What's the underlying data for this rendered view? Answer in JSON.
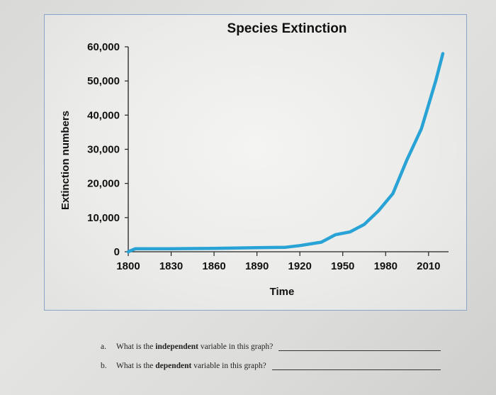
{
  "chart_data": {
    "type": "line",
    "title": "Species Extinction",
    "xlabel": "Time",
    "ylabel": "Extinction numbers",
    "x_ticks": [
      1800,
      1830,
      1860,
      1890,
      1920,
      1950,
      1980,
      2010
    ],
    "y_ticks": [
      "0",
      "10,000",
      "20,000",
      "30,000",
      "40,000",
      "50,000",
      "60,000"
    ],
    "xlim": [
      1800,
      2020
    ],
    "ylim": [
      0,
      60000
    ],
    "grid": false,
    "series": [
      {
        "color": "#29a3d6",
        "points": [
          [
            1800,
            0
          ],
          [
            1805,
            900
          ],
          [
            1830,
            900
          ],
          [
            1860,
            1000
          ],
          [
            1890,
            1200
          ],
          [
            1910,
            1300
          ],
          [
            1920,
            1800
          ],
          [
            1935,
            2800
          ],
          [
            1945,
            5000
          ],
          [
            1955,
            5800
          ],
          [
            1965,
            8000
          ],
          [
            1975,
            12000
          ],
          [
            1985,
            17000
          ],
          [
            1995,
            27000
          ],
          [
            2005,
            36000
          ],
          [
            2015,
            50000
          ],
          [
            2020,
            58000
          ]
        ]
      }
    ]
  },
  "questions": [
    {
      "letter": "a.",
      "pre": "What is the ",
      "bold": "independent",
      "post": " variable in this graph?"
    },
    {
      "letter": "b.",
      "pre": "What is the ",
      "bold": "dependent",
      "post": " variable in this graph?"
    }
  ]
}
